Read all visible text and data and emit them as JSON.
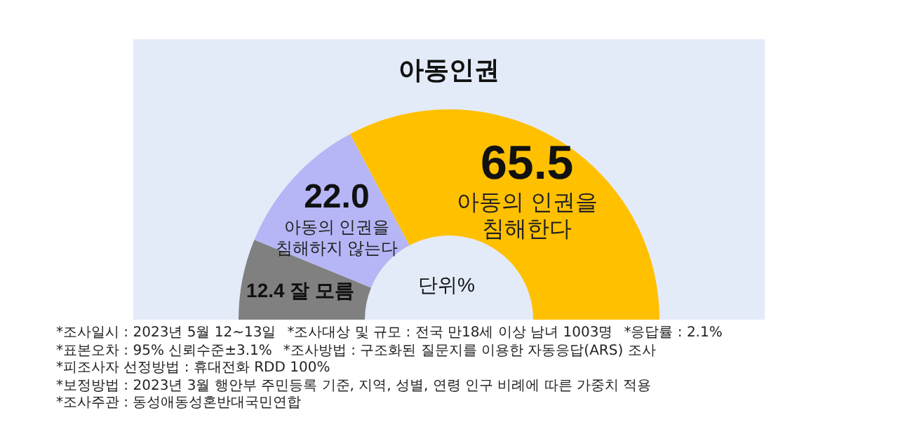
{
  "chart_data": {
    "type": "donut",
    "title": "아동인권",
    "categories": [
      "잘 모름",
      "아동의 인권을 침해하지 않는다",
      "아동의 인권을 침해한다"
    ],
    "values": [
      12.4,
      22.0,
      65.5
    ],
    "value_labels": [
      "12.4",
      "22.0",
      "65.5"
    ],
    "colors": [
      "#808080",
      "#b6b6f6",
      "#ffc000"
    ],
    "annotations": [
      "단위%",
      "*조사일시 : 2023년 5월 12~13일",
      "*조사대상 및 규모 : 전국 만18세 이상 남녀 1003명",
      "*응답률 : 2.1%",
      "*표본오차 : 95% 신뢰수준±3.1%",
      "*조사방법 : 구조화된 질문지를 이용한 자동응답(ARS) 조사",
      "*피조사자 선정방법 : 휴대전화 RDD 100%",
      "*보정방법 : 2023년 3월 행안부 주민등록 기준, 지역, 성별, 연령 인구 비례에 따른 가중치 적용",
      "*조사주관 : 동성애동성혼반대국민연합"
    ]
  }
}
